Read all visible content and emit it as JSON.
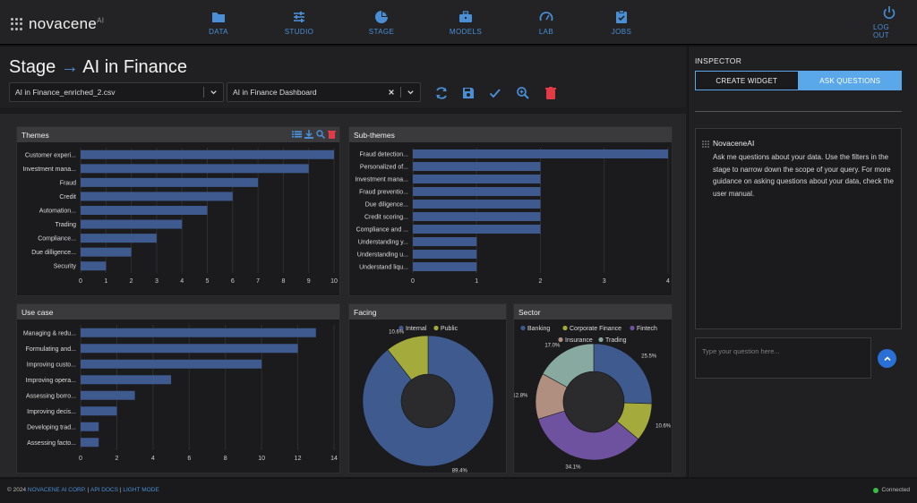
{
  "brand": {
    "name": "novacene",
    "suffix": "AI"
  },
  "nav": [
    {
      "label": "DATA",
      "icon": "folder-icon"
    },
    {
      "label": "STUDIO",
      "icon": "sliders-icon"
    },
    {
      "label": "STAGE",
      "icon": "pie-icon"
    },
    {
      "label": "MODELS",
      "icon": "briefcase-icon"
    },
    {
      "label": "LAB",
      "icon": "gauge-icon"
    },
    {
      "label": "JOBS",
      "icon": "clipboard-icon"
    }
  ],
  "logout_label": "LOG OUT",
  "stage": {
    "title_prefix": "Stage",
    "arrow": "→",
    "title_name": "AI in Finance",
    "dataset_value": "AI in Finance_enriched_2.csv",
    "dashboard_value": "AI in Finance Dashboard"
  },
  "colors": {
    "accent": "#4a8fd6",
    "bar": "#3e5a8e",
    "internal": "#3e5a8e",
    "public": "#a4ab3c"
  },
  "widgets": {
    "themes": {
      "title": "Themes",
      "chart_data": {
        "type": "bar",
        "orientation": "horizontal",
        "categories": [
          "Customer experi...",
          "Investment mana...",
          "Fraud",
          "Credit",
          "Automation...",
          "Trading",
          "Compliance...",
          "Due dilligence...",
          "Security"
        ],
        "values": [
          10,
          9,
          7,
          6,
          5,
          4,
          3,
          2,
          1
        ],
        "xlim": [
          0,
          10
        ],
        "xticks": [
          0,
          1,
          2,
          3,
          4,
          5,
          6,
          7,
          8,
          9,
          10
        ]
      }
    },
    "subthemes": {
      "title": "Sub-themes",
      "chart_data": {
        "type": "bar",
        "orientation": "horizontal",
        "categories": [
          "Fraud detection...",
          "Personalized of...",
          "Investment mana...",
          "Fraud preventio...",
          "Due diligence...",
          "Credit scoring...",
          "Compliance and ...",
          "Understanding y...",
          "Understanding u...",
          "Understand liqu..."
        ],
        "values": [
          4,
          2,
          2,
          2,
          2,
          2,
          2,
          1,
          1,
          1
        ],
        "xlim": [
          0,
          4
        ],
        "xticks": [
          0,
          1,
          2,
          3,
          4
        ]
      }
    },
    "usecase": {
      "title": "Use case",
      "chart_data": {
        "type": "bar",
        "orientation": "horizontal",
        "categories": [
          "Managing & redu...",
          "Formulating and...",
          "Improving custo...",
          "Improving opera...",
          "Assessing borro...",
          "Improving decis...",
          "Developing trad...",
          "Assessing facto..."
        ],
        "values": [
          13,
          12,
          10,
          5,
          3,
          2,
          1,
          1
        ],
        "xlim": [
          0,
          14
        ],
        "xticks": [
          0,
          2,
          4,
          6,
          8,
          10,
          12,
          14
        ]
      }
    },
    "facing": {
      "title": "Facing",
      "chart_data": {
        "type": "pie",
        "labels": [
          "Internal",
          "Public"
        ],
        "values": [
          89.4,
          10.6
        ],
        "value_labels": [
          "89.4%",
          "10.6%"
        ],
        "colors": [
          "#3e5a8e",
          "#a4ab3c"
        ],
        "legend": "top"
      }
    },
    "sector": {
      "title": "Sector",
      "chart_data": {
        "type": "pie",
        "labels": [
          "Banking",
          "Corporate Finance",
          "Fintech",
          "Insurance",
          "Trading"
        ],
        "values": [
          25.5,
          10.6,
          34.1,
          12.8,
          17.0
        ],
        "value_labels": [
          "25.5%",
          "10.6%",
          "34.1%",
          "12.8%",
          "17.0%"
        ],
        "colors": [
          "#3e5a8e",
          "#a4ab3c",
          "#6e52a0",
          "#b08f80",
          "#87a99f"
        ],
        "legend": "top"
      }
    }
  },
  "inspector": {
    "title": "INSPECTOR",
    "tab_create": "CREATE WIDGET",
    "tab_ask": "ASK QUESTIONS",
    "bot_name": "NovaceneAI",
    "bot_message": "Ask me questions about your data. Use the filters in the stage to narrow down the scope of your query. For more guidance on asking questions about your data, check the user manual.",
    "question_placeholder": "Type your question here..."
  },
  "footer": {
    "copyright": "© 2024",
    "company": "NOVACENE AI CORP.",
    "sep": "|",
    "api_docs": "API DOCS",
    "light_mode": "LIGHT MODE",
    "status": "Connected"
  }
}
